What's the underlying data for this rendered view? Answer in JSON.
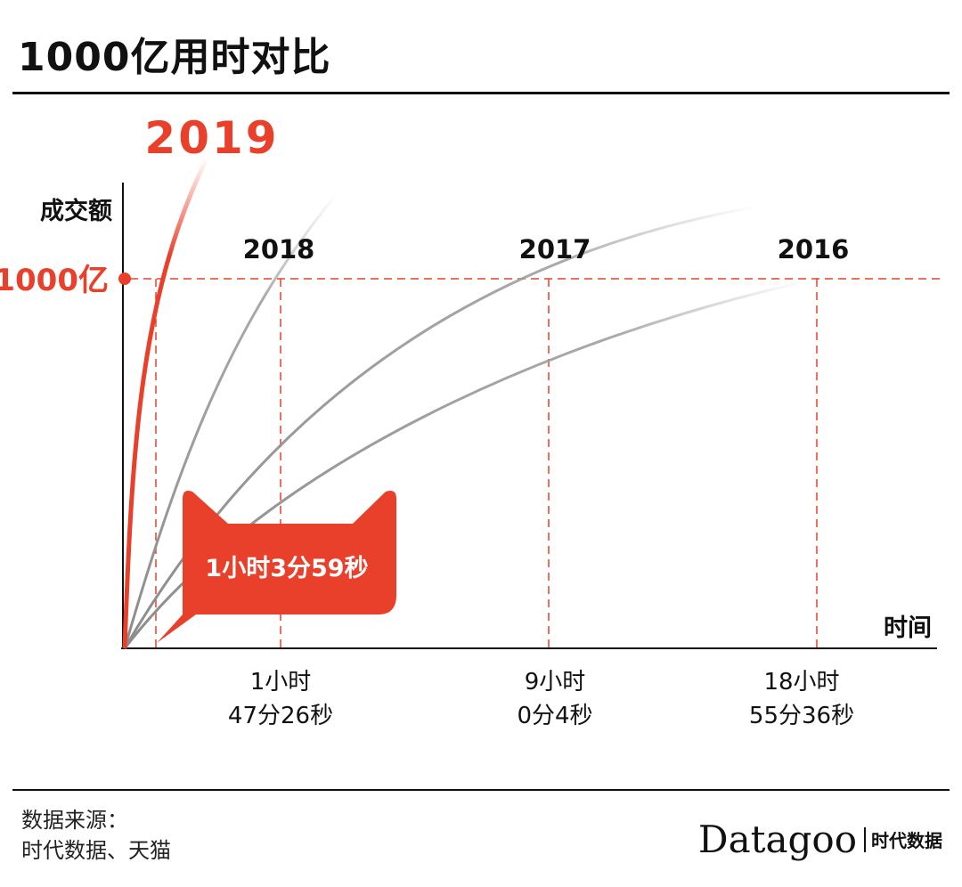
{
  "title": "1000亿用时对比",
  "chart_data": {
    "type": "line",
    "ylabel": "成交额",
    "xlabel": "时间",
    "threshold": {
      "label": "1000亿",
      "value": 1000
    },
    "series": [
      {
        "name": "2019",
        "time_label": "1小时3分59秒",
        "hours_to_threshold": 1.0664,
        "color": "#e8402a",
        "highlight": true
      },
      {
        "name": "2018",
        "time_label": [
          "1小时",
          "47分26秒"
        ],
        "hours_to_threshold": 1.7906,
        "color": "#9a9a9a",
        "highlight": false
      },
      {
        "name": "2017",
        "time_label": [
          "9小时",
          "0分4秒"
        ],
        "hours_to_threshold": 9.0011,
        "color": "#9a9a9a",
        "highlight": false
      },
      {
        "name": "2016",
        "time_label": [
          "18小时",
          "55分36秒"
        ],
        "hours_to_threshold": 18.9267,
        "color": "#9a9a9a",
        "highlight": false
      }
    ],
    "colors": {
      "accent": "#e8402a",
      "grey": "#9a9a9a",
      "axis": "#111111"
    }
  },
  "footer": {
    "source_label": "数据来源：",
    "source_value": "时代数据、天猫",
    "brand_name": "Datagoo",
    "brand_cn": "时代数据"
  }
}
